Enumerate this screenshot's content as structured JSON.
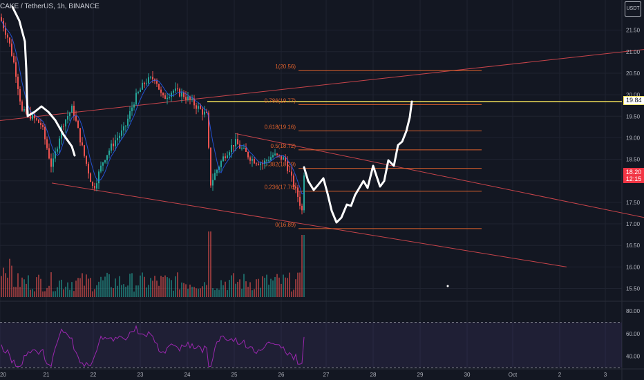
{
  "header": {
    "title": "CAKE / TetherUS, 1h, BINANCE",
    "currency": "USDT"
  },
  "chart_data": {
    "type": "candlestick",
    "symbol": "CAKE / TetherUS",
    "interval": "1h",
    "exchange": "BINANCE",
    "ylim": [
      15.3,
      22.2
    ],
    "y_ticks": [
      15.5,
      16.0,
      16.5,
      17.0,
      17.5,
      18.0,
      18.5,
      19.0,
      19.5,
      20.0,
      20.5,
      21.0,
      21.5
    ],
    "y_tick_labels": [
      "15.50",
      "16.00",
      "16.50",
      "17.00",
      "17.50",
      "18.00",
      "18.50",
      "19.00",
      "19.50",
      "20.00",
      "20.50",
      "21.00",
      "21.50"
    ],
    "x_tick_labels": [
      "20",
      "21",
      "22",
      "23",
      "24",
      "25",
      "26",
      "27",
      "28",
      "29",
      "30",
      "Oct",
      "2",
      "3"
    ],
    "last_price": "18.20",
    "countdown": "12:15",
    "highlight_price": "19.84",
    "fib_levels": [
      {
        "label": "1(20.56)",
        "ratio": 1,
        "value": 20.56
      },
      {
        "label": "0.786(19.77)",
        "ratio": 0.786,
        "value": 19.77
      },
      {
        "label": "0.618(19.16)",
        "ratio": 0.618,
        "value": 19.16
      },
      {
        "label": "0.5(18.72)",
        "ratio": 0.5,
        "value": 18.72
      },
      {
        "label": "0.382(18.29)",
        "ratio": 0.382,
        "value": 18.29
      },
      {
        "label": "0.236(17.76)",
        "ratio": 0.236,
        "value": 17.76
      },
      {
        "label": "0(16.89)",
        "ratio": 0,
        "value": 16.89
      }
    ],
    "rsi": {
      "ylim": [
        30,
        85
      ],
      "y_ticks": [
        40,
        60,
        80
      ],
      "y_tick_labels": [
        "40.00",
        "60.00",
        "80.00"
      ],
      "band_upper": 70,
      "band_lower": 30
    }
  },
  "colors": {
    "background": "#131722",
    "up": "#26a69a",
    "down": "#ef5350",
    "fib": "#e0622d",
    "trendline": "#c7444a",
    "rsi": "#9c27b0",
    "highlight": "#f5e15a"
  }
}
